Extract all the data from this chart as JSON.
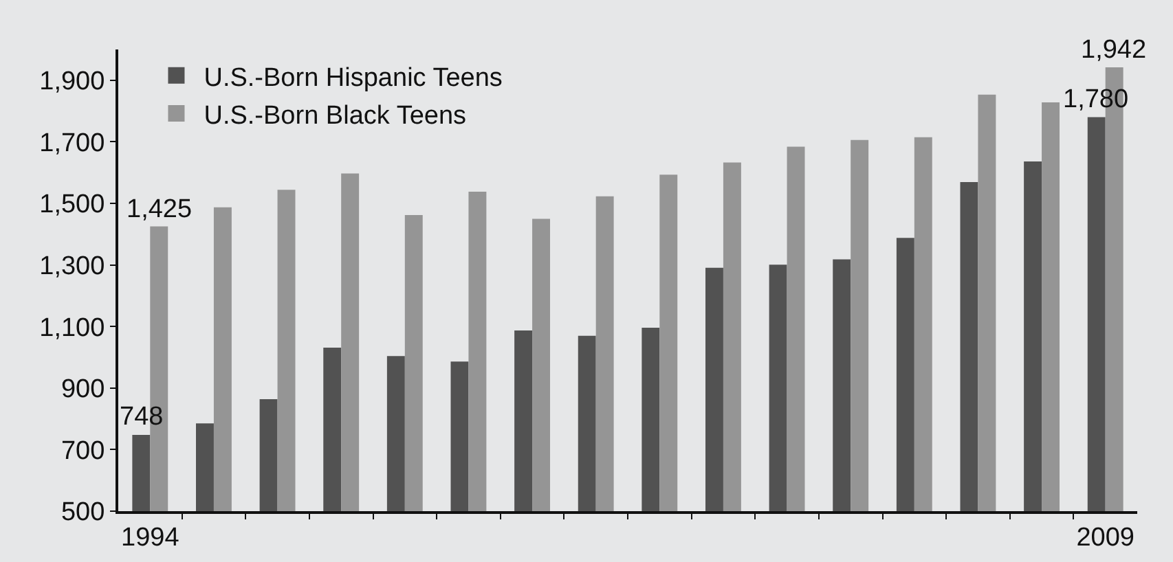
{
  "chart_data": {
    "type": "bar",
    "x": [
      1994,
      1995,
      1996,
      1997,
      1998,
      1999,
      2000,
      2001,
      2002,
      2003,
      2004,
      2005,
      2006,
      2007,
      2008,
      2009
    ],
    "series": [
      {
        "name": "U.S.-Born Hispanic Teens",
        "color": "#525252",
        "values": [
          748,
          785,
          864,
          1031,
          1004,
          986,
          1087,
          1070,
          1096,
          1291,
          1301,
          1318,
          1388,
          1569,
          1636,
          1780
        ],
        "value_labels": [
          "748",
          null,
          null,
          null,
          null,
          null,
          null,
          null,
          null,
          null,
          null,
          null,
          null,
          null,
          null,
          "1,780"
        ]
      },
      {
        "name": "U.S.-Born Black Teens",
        "color": "#959595",
        "values": [
          1425,
          1487,
          1544,
          1597,
          1462,
          1538,
          1450,
          1523,
          1593,
          1633,
          1684,
          1706,
          1715,
          1853,
          1828,
          1942
        ],
        "value_labels": [
          "1,425",
          null,
          null,
          null,
          null,
          null,
          null,
          null,
          null,
          null,
          null,
          null,
          null,
          null,
          null,
          "1,942"
        ]
      }
    ],
    "xlim": [
      1993.5,
      2009.5
    ],
    "xticks": [
      1994,
      {
        "value": 1994.5,
        "label": null
      },
      {
        "value": 1995.5,
        "label": null
      },
      {
        "value": 1996.5,
        "label": null
      },
      {
        "value": 1997.5,
        "label": null
      },
      {
        "value": 1998.5,
        "label": null
      },
      {
        "value": 1999.5,
        "label": null
      },
      {
        "value": 2000.5,
        "label": null
      },
      {
        "value": 2001.5,
        "label": null
      },
      {
        "value": 2002.5,
        "label": null
      },
      {
        "value": 2003.5,
        "label": null
      },
      {
        "value": 2004.5,
        "label": null
      },
      {
        "value": 2005.5,
        "label": null
      },
      {
        "value": 2006.5,
        "label": null
      },
      {
        "value": 2007.5,
        "label": null
      },
      {
        "value": 2008.5,
        "label": null
      },
      2009
    ],
    "ylim": [
      500,
      2000
    ],
    "yticks": [
      500,
      700,
      900,
      {
        "value": 1100,
        "label": "1,100"
      },
      {
        "value": 1300,
        "label": "1,300"
      },
      {
        "value": 1500,
        "label": "1,500"
      },
      {
        "value": 1700,
        "label": "1,700"
      },
      {
        "value": 1900,
        "label": "1,900"
      }
    ],
    "grid": false,
    "legend": "top left"
  }
}
